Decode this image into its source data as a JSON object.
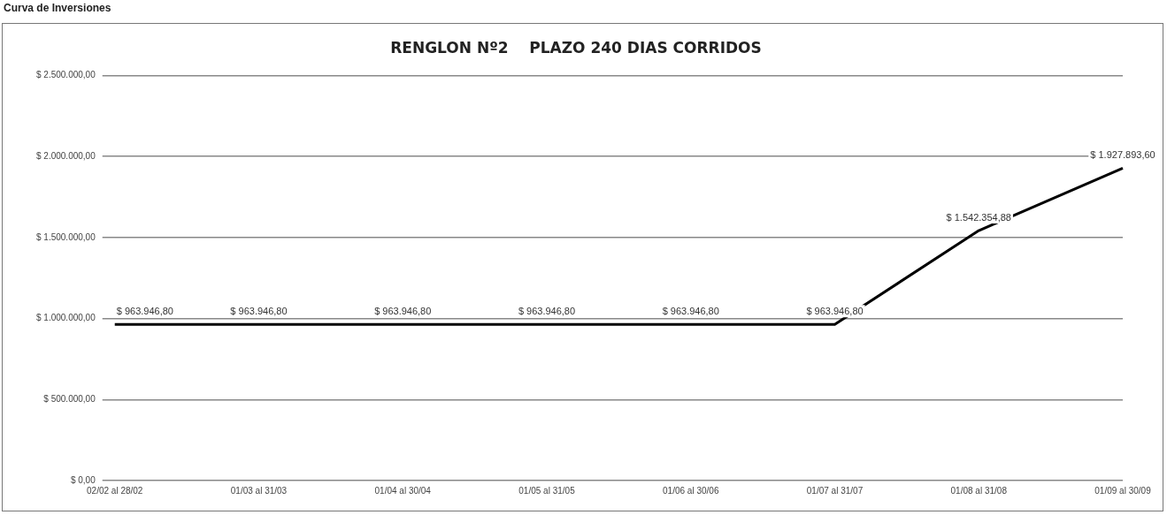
{
  "chart_data": {
    "type": "line",
    "title": "RENGLON Nº2    PLAZO 240 DIAS CORRIDOS",
    "annotations": [
      "Curva de Inversiones"
    ],
    "categories": [
      "02/02 al 28/02",
      "01/03 al 31/03",
      "01/04 al 30/04",
      "01/05 al 31/05",
      "01/06 al 30/06",
      "01/07 al 31/07",
      "01/08 al 31/08",
      "01/09 al 30/09"
    ],
    "series": [
      {
        "color": "#000000",
        "values": [
          963946.8,
          963946.8,
          963946.8,
          963946.8,
          963946.8,
          963946.8,
          1542354.88,
          1927893.6
        ],
        "value_labels": [
          "$ 963.946,80",
          "$ 963.946,80",
          "$ 963.946,80",
          "$ 963.946,80",
          "$ 963.946,80",
          "$ 963.946,80",
          "$ 1.542.354,88",
          "$ 1.927.893,60"
        ]
      }
    ],
    "ylim": [
      0,
      2500000
    ],
    "yticks": [
      {
        "value": 0,
        "label": "$ 0,00"
      },
      {
        "value": 500000,
        "label": "$ 500.000,00"
      },
      {
        "value": 1000000,
        "label": "$ 1.000.000,00"
      },
      {
        "value": 1500000,
        "label": "$ 1.500.000,00"
      },
      {
        "value": 2000000,
        "label": "$ 2.000.000,00"
      },
      {
        "value": 2500000,
        "label": "$ 2.500.000,00"
      }
    ],
    "grid": "y",
    "legend": false,
    "marker": "none",
    "line_style": "solid"
  }
}
